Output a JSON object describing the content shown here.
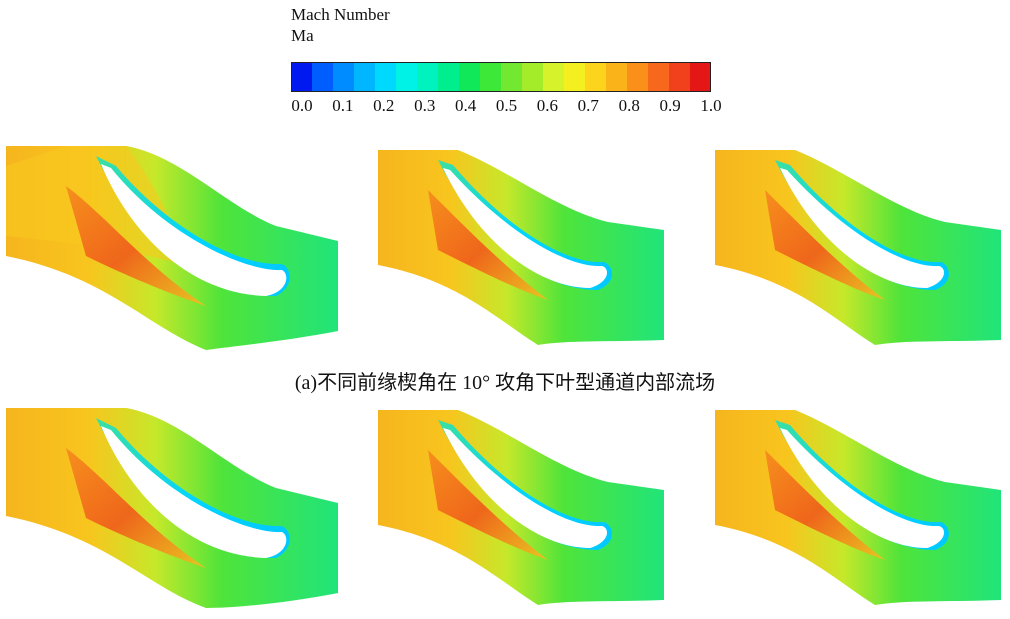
{
  "legend": {
    "title": "Mach Number",
    "subtitle": "Ma",
    "ticks": [
      "0.0",
      "0.1",
      "0.2",
      "0.3",
      "0.4",
      "0.5",
      "0.6",
      "0.7",
      "0.8",
      "0.9",
      "1.0"
    ],
    "colors": [
      "#0019f0",
      "#005dff",
      "#008cff",
      "#00b6ff",
      "#00d9ff",
      "#00f2e6",
      "#00f2bf",
      "#00ee8e",
      "#10e85a",
      "#3de838",
      "#72e830",
      "#a4ec2a",
      "#d6f22a",
      "#f4f01f",
      "#fcd41c",
      "#fbb31a",
      "#fa901a",
      "#f7681c",
      "#f0401c",
      "#e41616"
    ]
  },
  "caption": "(a)不同前缘楔角在 10° 攻角下叶型通道内部流场"
}
